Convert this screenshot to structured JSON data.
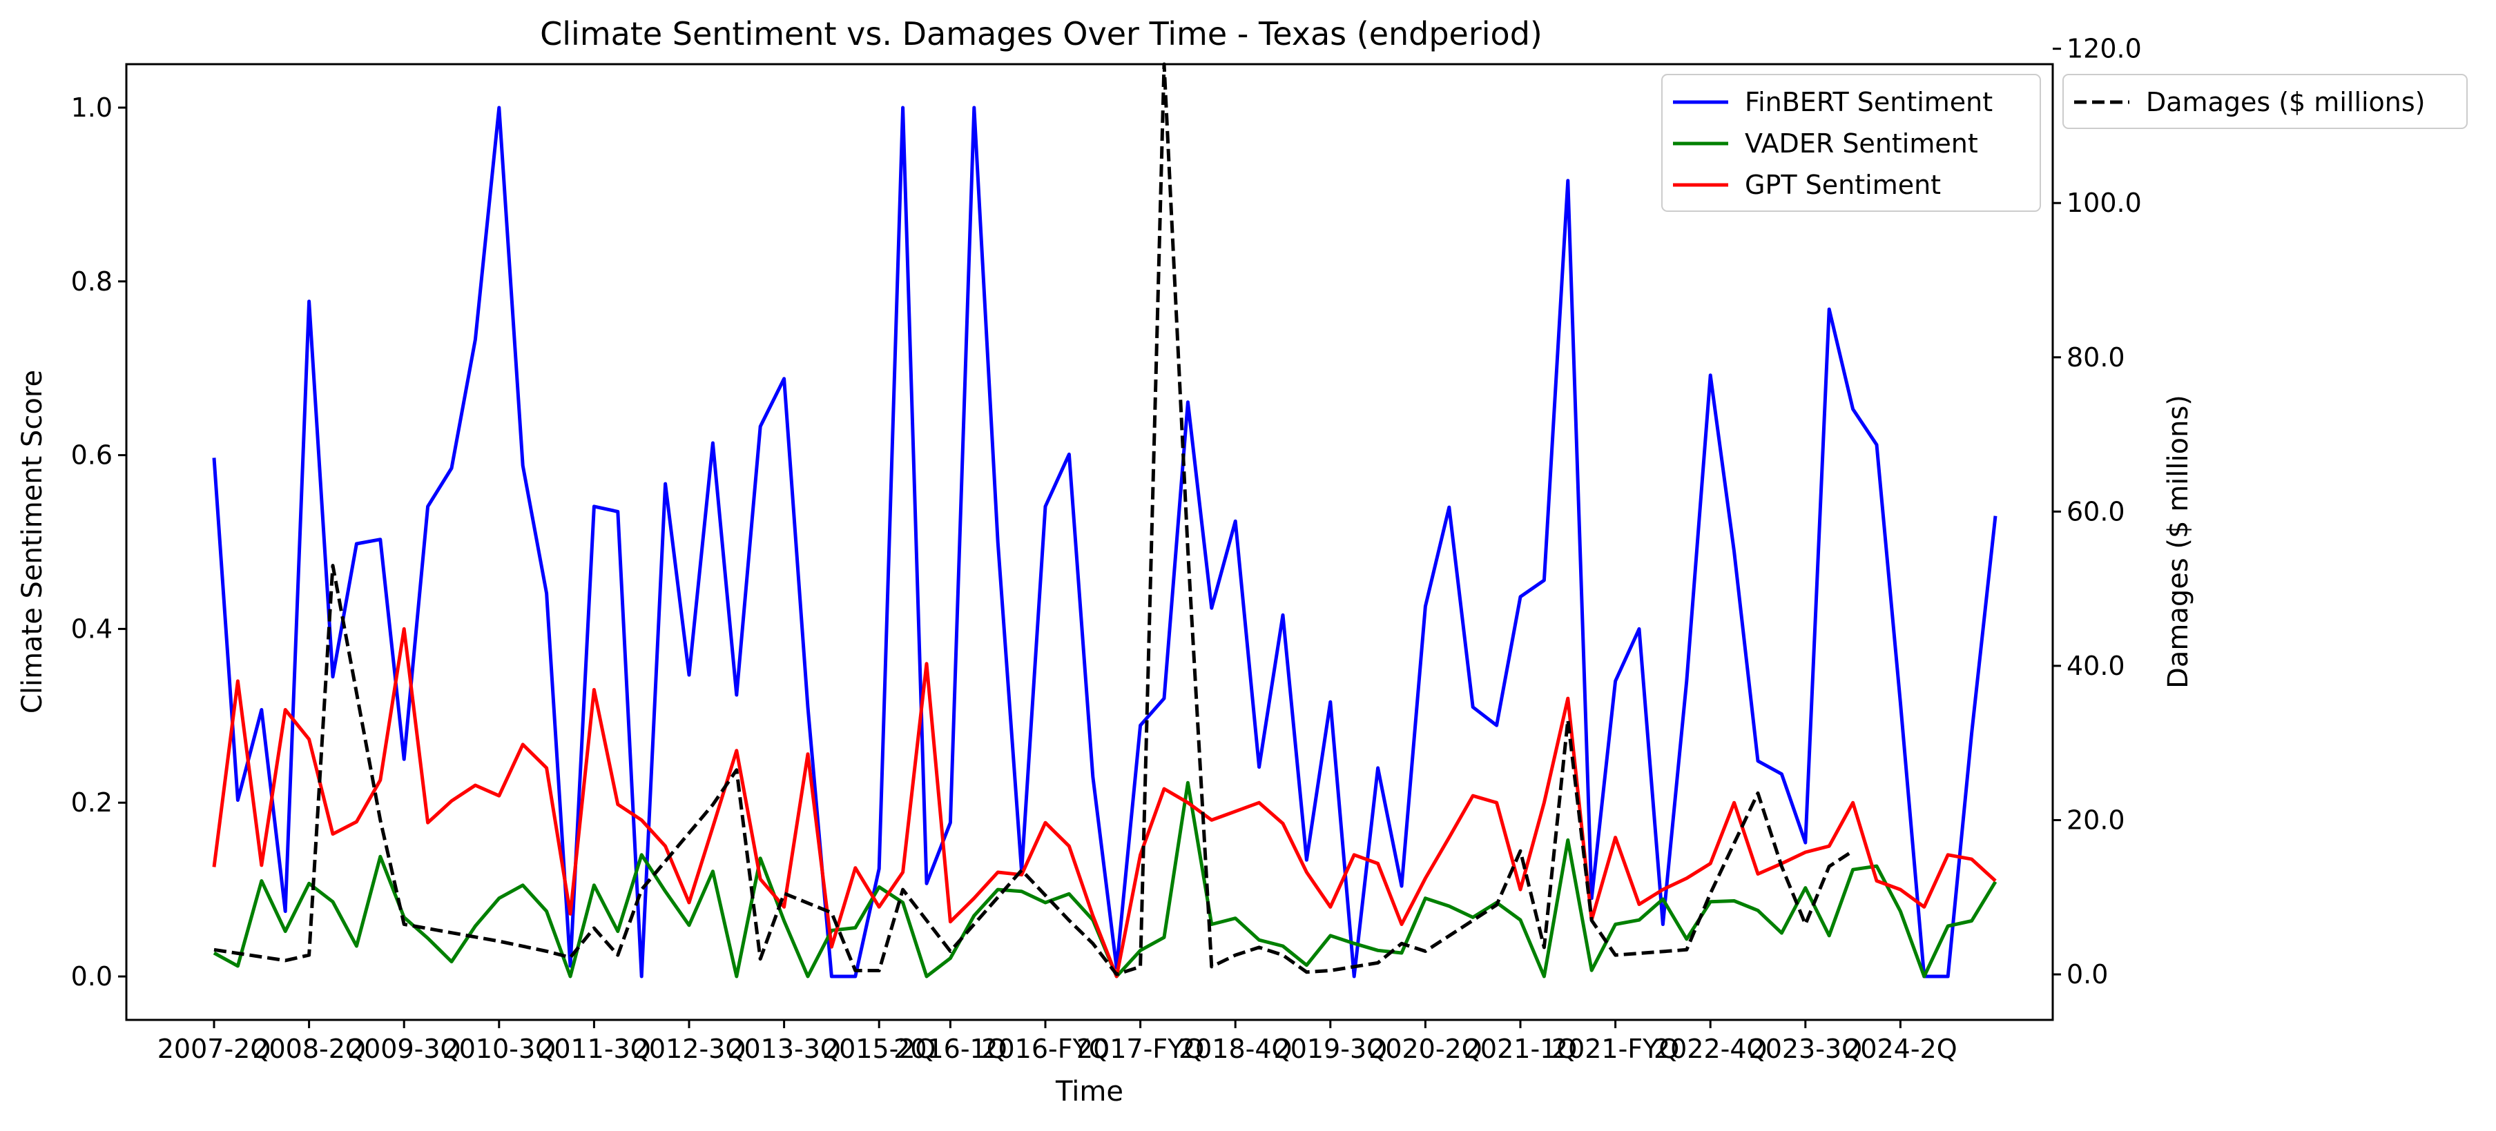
{
  "chart_data": {
    "type": "line",
    "title": "Climate Sentiment vs. Damages Over Time - Texas (endperiod)",
    "xlabel": "Time",
    "ylabel_left": "Climate Sentiment Score",
    "ylabel_right": "Damages ($ millions)",
    "x_tick_labels": [
      "2007-2Q",
      "2008-2Q",
      "2009-3Q",
      "2010-3Q",
      "2011-3Q",
      "2012-3Q",
      "2013-3Q",
      "2015-2Q",
      "2016-1Q",
      "2016-FYQ",
      "2017-FYQ",
      "2018-4Q",
      "2019-3Q",
      "2020-2Q",
      "2021-1Q",
      "2021-FYQ",
      "2022-4Q",
      "2023-3Q",
      "2024-2Q"
    ],
    "x_tick_index": [
      0,
      4,
      8,
      12,
      16,
      20,
      24,
      28,
      31,
      35,
      39,
      43,
      47,
      51,
      55,
      59,
      63,
      67,
      71
    ],
    "left_ylim": [
      -0.05,
      1.05
    ],
    "left_yticks": [
      "0.0",
      "0.2",
      "0.4",
      "0.6",
      "0.8",
      "1.0"
    ],
    "right_ylim": [
      -5.9,
      118.0
    ],
    "right_yticks": [
      "0.0",
      "20.0",
      "40.0",
      "60.0",
      "80.0",
      "100.0",
      "120.0"
    ],
    "grid": false,
    "legend_left": {
      "placement": "top-right"
    },
    "legend_right": {
      "placement": "outside-top-right"
    },
    "series": [
      {
        "name": "FinBERT Sentiment",
        "axis": "left",
        "color": "#0000ff",
        "style": "solid",
        "values": [
          0.597,
          0.203,
          0.307,
          0.075,
          0.777,
          0.345,
          0.498,
          0.503,
          0.25,
          0.541,
          0.585,
          0.733,
          1.0,
          0.588,
          0.441,
          0.012,
          0.541,
          0.535,
          0.0,
          0.567,
          0.347,
          0.614,
          0.324,
          0.633,
          0.688,
          0.31,
          0.0,
          0.0,
          0.124,
          1.0,
          0.107,
          0.177,
          1.0,
          0.5,
          0.121,
          0.541,
          0.601,
          0.23,
          0.01,
          0.289,
          0.32,
          0.661,
          0.424,
          0.524,
          0.241,
          0.416,
          0.134,
          0.316,
          0.0,
          0.24,
          0.104,
          0.426,
          0.54,
          0.31,
          0.289,
          0.437,
          0.456,
          0.916,
          0.09,
          0.34,
          0.4,
          0.06,
          0.34,
          0.692,
          0.489,
          0.248,
          0.233,
          0.154,
          0.768,
          0.653,
          0.612,
          0.315,
          0.0,
          0.0,
          0.28,
          0.53
        ]
      },
      {
        "name": "VADER Sentiment",
        "axis": "left",
        "color": "#008000",
        "style": "solid",
        "values": [
          0.027,
          0.012,
          0.11,
          0.052,
          0.107,
          0.086,
          0.035,
          0.138,
          0.068,
          0.044,
          0.017,
          0.058,
          0.09,
          0.105,
          0.075,
          0.0,
          0.105,
          0.052,
          0.14,
          0.098,
          0.059,
          0.121,
          0.0,
          0.136,
          0.064,
          0.0,
          0.053,
          0.056,
          0.103,
          0.085,
          0.0,
          0.021,
          0.07,
          0.1,
          0.098,
          0.085,
          0.095,
          0.065,
          0.0,
          0.03,
          0.045,
          0.223,
          0.06,
          0.067,
          0.042,
          0.035,
          0.013,
          0.047,
          0.038,
          0.03,
          0.027,
          0.09,
          0.081,
          0.068,
          0.085,
          0.065,
          0.0,
          0.157,
          0.007,
          0.06,
          0.065,
          0.089,
          0.043,
          0.086,
          0.087,
          0.076,
          0.05,
          0.102,
          0.047,
          0.123,
          0.127,
          0.075,
          0.0,
          0.058,
          0.064,
          0.109
        ]
      },
      {
        "name": "GPT Sentiment",
        "axis": "left",
        "color": "#ff0000",
        "style": "solid",
        "values": [
          0.126,
          0.34,
          0.128,
          0.307,
          0.273,
          0.164,
          0.178,
          0.226,
          0.4,
          0.177,
          0.202,
          0.22,
          0.208,
          0.267,
          0.24,
          0.072,
          0.33,
          0.198,
          0.18,
          0.15,
          0.085,
          0.172,
          0.26,
          0.112,
          0.08,
          0.256,
          0.034,
          0.125,
          0.08,
          0.12,
          0.36,
          0.063,
          0.09,
          0.12,
          0.117,
          0.177,
          0.15,
          0.07,
          0.0,
          0.14,
          0.216,
          0.2,
          0.18,
          0.19,
          0.2,
          0.176,
          0.12,
          0.08,
          0.14,
          0.13,
          0.06,
          0.113,
          0.16,
          0.208,
          0.2,
          0.1,
          0.2,
          0.32,
          0.065,
          0.16,
          0.083,
          0.1,
          0.113,
          0.13,
          0.2,
          0.118,
          0.13,
          0.143,
          0.15,
          0.2,
          0.11,
          0.1,
          0.08,
          0.14,
          0.135,
          0.11
        ]
      },
      {
        "name": "Damages ($ millions)",
        "axis": "right",
        "color": "#000000",
        "style": "dashed",
        "points": [
          [
            0,
            3.2
          ],
          [
            3,
            1.8
          ],
          [
            4,
            2.5
          ],
          [
            5,
            53.0
          ],
          [
            7,
            20.0
          ],
          [
            8,
            6.5
          ],
          [
            12,
            4.3
          ],
          [
            14,
            3.0
          ],
          [
            15,
            2.2
          ],
          [
            16,
            6.0
          ],
          [
            17,
            2.5
          ],
          [
            18,
            11.0
          ],
          [
            21,
            22.0
          ],
          [
            22,
            26.5
          ],
          [
            23,
            2.0
          ],
          [
            24,
            10.5
          ],
          [
            26,
            8.0
          ],
          [
            27,
            0.5
          ],
          [
            28,
            0.5
          ],
          [
            29,
            11.0
          ],
          [
            31,
            3.0
          ],
          [
            33,
            10.0
          ],
          [
            34,
            13.5
          ],
          [
            36,
            7.0
          ],
          [
            37,
            4.0
          ],
          [
            38,
            0.0
          ],
          [
            39,
            1.0
          ],
          [
            40,
            118.0
          ],
          [
            41,
            55.0
          ],
          [
            42,
            1.0
          ],
          [
            43,
            2.5
          ],
          [
            44,
            3.5
          ],
          [
            45,
            2.5
          ],
          [
            46,
            0.3
          ],
          [
            47,
            0.5
          ],
          [
            49,
            1.5
          ],
          [
            50,
            4.0
          ],
          [
            51,
            3.0
          ],
          [
            53,
            7.0
          ],
          [
            54,
            9.0
          ],
          [
            55,
            16.0
          ],
          [
            56,
            3.5
          ],
          [
            57,
            33.0
          ],
          [
            58,
            7.0
          ],
          [
            59,
            2.5
          ],
          [
            62,
            3.2
          ],
          [
            63,
            10.5
          ],
          [
            64,
            17.0
          ],
          [
            65,
            23.5
          ],
          [
            66,
            14.0
          ],
          [
            67,
            6.5
          ],
          [
            68,
            14.0
          ],
          [
            69,
            16.0
          ]
        ]
      }
    ]
  }
}
